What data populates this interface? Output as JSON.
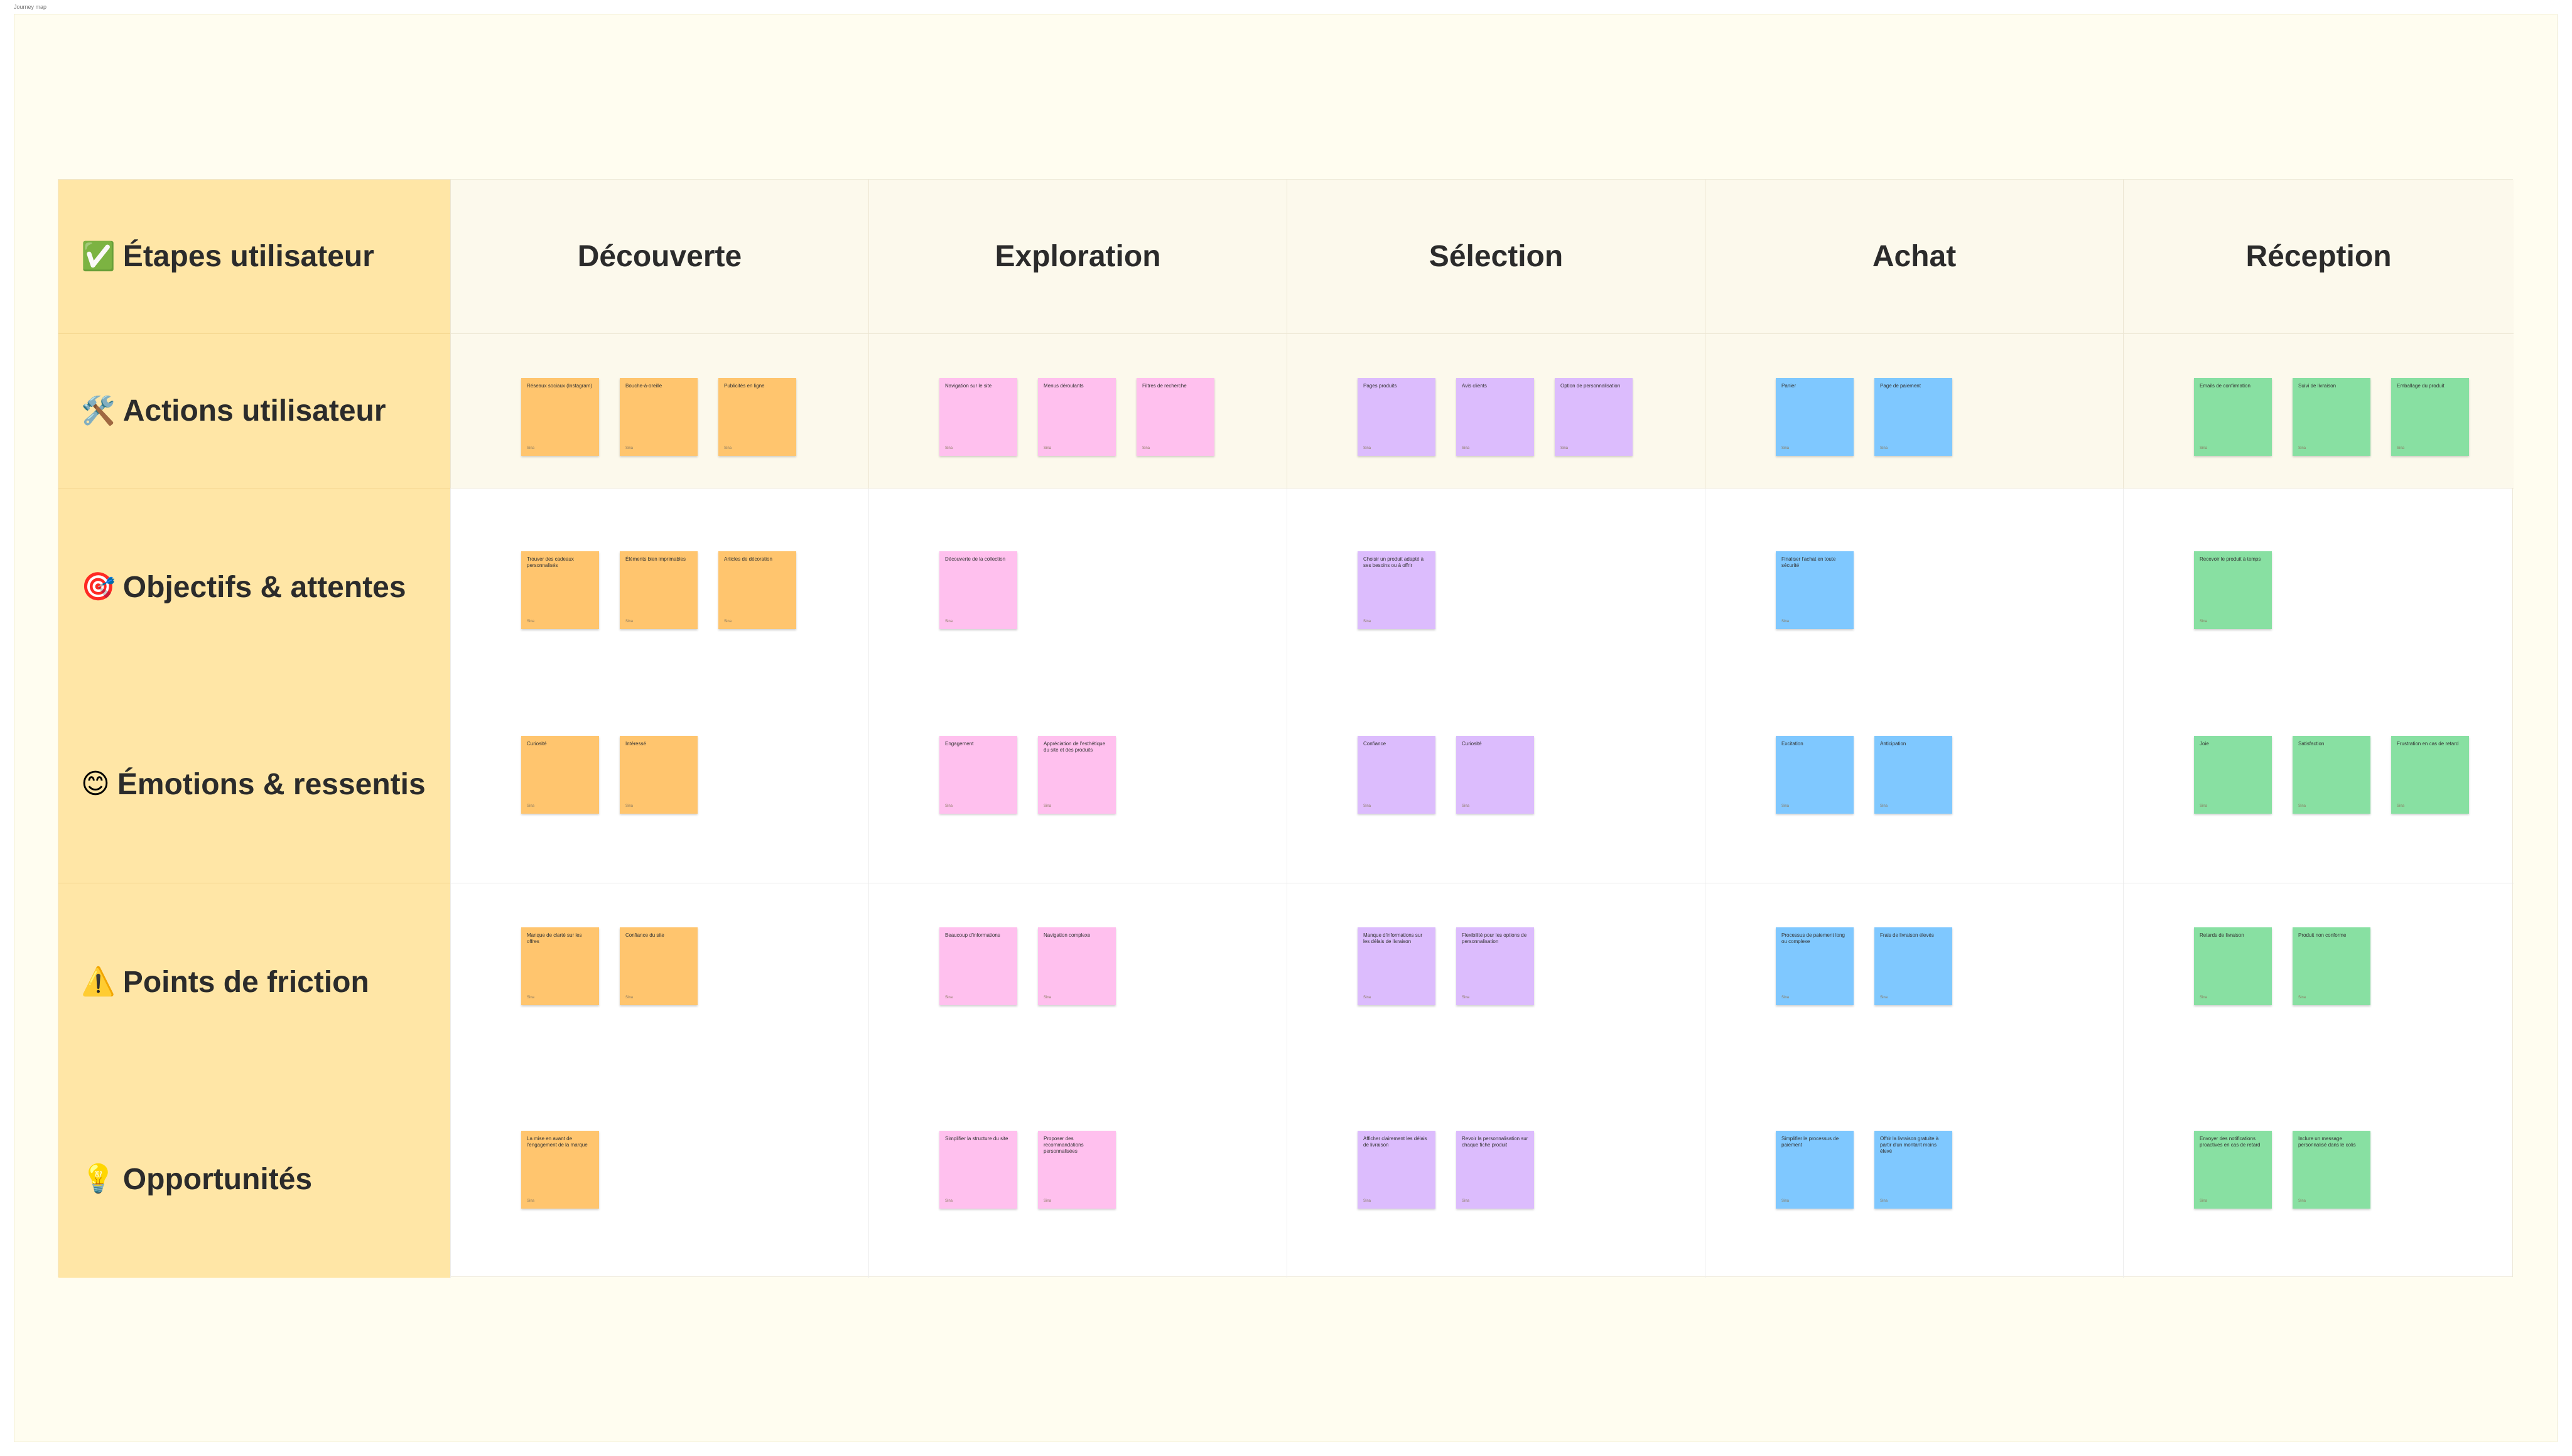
{
  "board_title": "Journey map",
  "colors": {
    "frame_bg": "#fffdf0",
    "row_header_bg": "#ffe6a6",
    "stage_header_bg": "#fcf9ec",
    "decouverte": "#ffc56e",
    "exploration": "#ffc0ee",
    "selection": "#dcbcfd",
    "achat": "#7fc8ff",
    "reception": "#88e0a2"
  },
  "rows": {
    "etapes": {
      "emoji": "✅",
      "label": "Étapes utilisateur"
    },
    "actions": {
      "emoji": "🛠️",
      "label": "Actions utilisateur"
    },
    "objectifs": {
      "emoji": "🎯",
      "label": "Objectifs & attentes"
    },
    "emotions": {
      "emoji": "😊",
      "label": "Émotions & ressentis"
    },
    "friction": {
      "emoji": "⚠️",
      "label": "Points de friction"
    },
    "opportunites": {
      "emoji": "💡",
      "label": "Opportunités"
    }
  },
  "stages": [
    "Découverte",
    "Exploration",
    "Sélection",
    "Achat",
    "Réception"
  ],
  "note_author": "Sina",
  "notes": {
    "actions": [
      [
        "Réseaux sociaux (Instagram)",
        "Bouche-à-oreille",
        "Publicités en ligne"
      ],
      [
        "Navigation sur le site",
        "Menus déroulants",
        "Filtres de recherche"
      ],
      [
        "Pages produits",
        "Avis clients",
        "Option de personnalisation"
      ],
      [
        "Panier",
        "Page de paiement"
      ],
      [
        "Emails de confirmation",
        "Suivi de livraison",
        "Emballage du produit"
      ]
    ],
    "objectifs": [
      [
        "Trouver des cadeaux personnalisés",
        "Éléments bien imprimables",
        "Articles de décoration"
      ],
      [
        "Découverte de la collection"
      ],
      [
        "Choisir un produit adapté à ses besoins ou à offrir"
      ],
      [
        "Finaliser l'achat en toute sécurité"
      ],
      [
        "Recevoir le produit à temps"
      ]
    ],
    "emotions": [
      [
        "Curiosité",
        "Intéressé"
      ],
      [
        "Engagement",
        "Appréciation de l'esthétique du site et des produits"
      ],
      [
        "Confiance",
        "Curiosité"
      ],
      [
        "Excitation",
        "Anticipation"
      ],
      [
        "Joie",
        "Satisfaction",
        "Frustration en cas de retard"
      ]
    ],
    "friction": [
      [
        "Manque de clarté sur les offres",
        "Confiance du site"
      ],
      [
        "Beaucoup d'informations",
        "Navigation complexe"
      ],
      [
        "Manque d'informations sur les délais de livraison",
        "Flexibilité pour les options de personnalisation"
      ],
      [
        "Processus de paiement long ou complexe",
        "Frais de livraison élevés"
      ],
      [
        "Retards de livraison",
        "Produit non conforme"
      ]
    ],
    "opportunites": [
      [
        "La mise en avant de l'engagement de la marque"
      ],
      [
        "Simplifier la structure du site",
        "Proposer des recommandations personnalisées"
      ],
      [
        "Afficher clairement les délais de livraison",
        "Revoir la personnalisation sur chaque fiche produit"
      ],
      [
        "Simplifier le processus de paiement",
        "Offrir la livraison gratuite à partir d'un montant moins élevé"
      ],
      [
        "Envoyer des notifications proactives en cas de retard",
        "Inclure un message personnalisé dans le colis"
      ]
    ]
  }
}
